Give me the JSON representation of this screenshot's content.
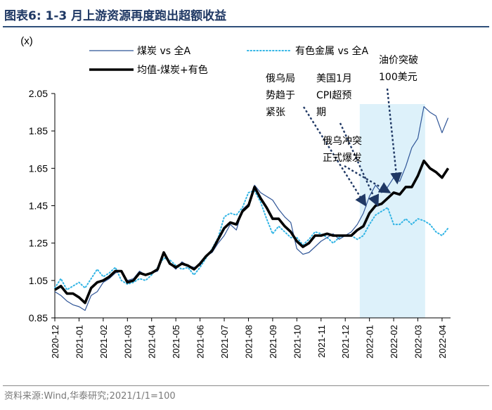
{
  "figure": {
    "title": "图表6:   1-3 月上游资源再度跑出超额收益",
    "source": "资料来源:Wind,华泰研究;2021/1/1=100"
  },
  "chart_data": {
    "type": "line",
    "title": "1-3 月上游资源再度跑出超额收益",
    "ylabel": "(x)",
    "xlabel": "",
    "ylim": [
      0.85,
      2.05
    ],
    "yticks": [
      0.85,
      1.05,
      1.25,
      1.45,
      1.65,
      1.85,
      2.05
    ],
    "ytick_labels": [
      "0.85",
      "1.05",
      "1.25",
      "1.45",
      "1.65",
      "1.85",
      "2.05"
    ],
    "xlim": [
      0,
      16.35
    ],
    "xticks": [
      "2020-12",
      "2021-01",
      "2021-02",
      "2021-03",
      "2021-04",
      "2021-05",
      "2021-06",
      "2021-07",
      "2021-08",
      "2021-09",
      "2021-10",
      "2021-11",
      "2021-12",
      "2022-01",
      "2022-02",
      "2022-03",
      "2022-04"
    ],
    "shaded_region": [
      12.6,
      15.3
    ],
    "series": [
      {
        "name": "煤炭 vs 全A",
        "color": "#2f5597",
        "style": "thin",
        "x": [
          0,
          0.25,
          0.5,
          0.75,
          1,
          1.25,
          1.5,
          1.75,
          2,
          2.25,
          2.5,
          2.75,
          3,
          3.25,
          3.5,
          3.75,
          4,
          4.25,
          4.5,
          4.75,
          5,
          5.25,
          5.5,
          5.75,
          6,
          6.25,
          6.5,
          6.75,
          7,
          7.25,
          7.5,
          7.75,
          8,
          8.25,
          8.5,
          8.75,
          9,
          9.25,
          9.5,
          9.75,
          10,
          10.25,
          10.5,
          10.75,
          11,
          11.25,
          11.5,
          11.75,
          12,
          12.25,
          12.5,
          12.75,
          13,
          13.25,
          13.5,
          13.75,
          14,
          14.25,
          14.5,
          14.75,
          15,
          15.25,
          15.5,
          15.75,
          16,
          16.25
        ],
        "values": [
          0.99,
          0.97,
          0.94,
          0.92,
          0.91,
          0.89,
          0.97,
          0.99,
          1.04,
          1.06,
          1.09,
          1.1,
          1.05,
          1.06,
          1.1,
          1.08,
          1.09,
          1.1,
          1.2,
          1.14,
          1.11,
          1.15,
          1.13,
          1.12,
          1.13,
          1.18,
          1.2,
          1.25,
          1.29,
          1.35,
          1.32,
          1.43,
          1.46,
          1.56,
          1.52,
          1.5,
          1.48,
          1.43,
          1.39,
          1.36,
          1.22,
          1.19,
          1.2,
          1.23,
          1.26,
          1.28,
          1.3,
          1.27,
          1.29,
          1.31,
          1.35,
          1.41,
          1.5,
          1.56,
          1.52,
          1.55,
          1.6,
          1.58,
          1.66,
          1.76,
          1.81,
          1.98,
          1.95,
          1.93,
          1.84,
          1.92
        ]
      },
      {
        "name": "有色金属 vs 全A",
        "color": "#33b5e5",
        "style": "dotted",
        "x": [
          0,
          0.25,
          0.5,
          0.75,
          1,
          1.25,
          1.5,
          1.75,
          2,
          2.25,
          2.5,
          2.75,
          3,
          3.25,
          3.5,
          3.75,
          4,
          4.25,
          4.5,
          4.75,
          5,
          5.25,
          5.5,
          5.75,
          6,
          6.25,
          6.5,
          6.75,
          7,
          7.25,
          7.5,
          7.75,
          8,
          8.25,
          8.5,
          8.75,
          9,
          9.25,
          9.5,
          9.75,
          10,
          10.25,
          10.5,
          10.75,
          11,
          11.25,
          11.5,
          11.75,
          12,
          12.25,
          12.5,
          12.75,
          13,
          13.25,
          13.5,
          13.75,
          14,
          14.25,
          14.5,
          14.75,
          15,
          15.25,
          15.5,
          15.75,
          16,
          16.25
        ],
        "values": [
          1.01,
          1.06,
          1.0,
          1.02,
          1.04,
          1.01,
          1.06,
          1.11,
          1.07,
          1.09,
          1.12,
          1.05,
          1.03,
          1.04,
          1.06,
          1.05,
          1.08,
          1.12,
          1.17,
          1.16,
          1.13,
          1.11,
          1.12,
          1.08,
          1.12,
          1.17,
          1.22,
          1.28,
          1.39,
          1.41,
          1.4,
          1.44,
          1.52,
          1.53,
          1.47,
          1.38,
          1.3,
          1.34,
          1.31,
          1.28,
          1.28,
          1.24,
          1.27,
          1.31,
          1.3,
          1.28,
          1.25,
          1.28,
          1.29,
          1.29,
          1.27,
          1.29,
          1.35,
          1.4,
          1.42,
          1.44,
          1.35,
          1.35,
          1.38,
          1.35,
          1.38,
          1.37,
          1.35,
          1.31,
          1.29,
          1.33
        ]
      },
      {
        "name": "均值-煤炭+有色",
        "color": "#000000",
        "style": "thick",
        "x": [
          0,
          0.25,
          0.5,
          0.75,
          1,
          1.25,
          1.5,
          1.75,
          2,
          2.25,
          2.5,
          2.75,
          3,
          3.25,
          3.5,
          3.75,
          4,
          4.25,
          4.5,
          4.75,
          5,
          5.25,
          5.5,
          5.75,
          6,
          6.25,
          6.5,
          6.75,
          7,
          7.25,
          7.5,
          7.75,
          8,
          8.25,
          8.5,
          8.75,
          9,
          9.25,
          9.5,
          9.75,
          10,
          10.25,
          10.5,
          10.75,
          11,
          11.25,
          11.5,
          11.75,
          12,
          12.25,
          12.5,
          12.75,
          13,
          13.25,
          13.5,
          13.75,
          14,
          14.25,
          14.5,
          14.75,
          15,
          15.25,
          15.5,
          15.75,
          16,
          16.25
        ],
        "values": [
          1.0,
          1.02,
          0.98,
          0.98,
          0.96,
          0.93,
          1.01,
          1.04,
          1.05,
          1.07,
          1.1,
          1.1,
          1.04,
          1.05,
          1.09,
          1.08,
          1.09,
          1.11,
          1.2,
          1.14,
          1.12,
          1.14,
          1.13,
          1.11,
          1.14,
          1.18,
          1.21,
          1.27,
          1.33,
          1.36,
          1.35,
          1.42,
          1.45,
          1.55,
          1.49,
          1.44,
          1.38,
          1.38,
          1.34,
          1.31,
          1.26,
          1.23,
          1.25,
          1.29,
          1.29,
          1.3,
          1.29,
          1.29,
          1.29,
          1.29,
          1.32,
          1.34,
          1.41,
          1.45,
          1.46,
          1.49,
          1.52,
          1.51,
          1.55,
          1.55,
          1.61,
          1.69,
          1.65,
          1.63,
          1.6,
          1.65
        ]
      }
    ],
    "legend": {
      "position": "top",
      "entries": [
        "煤炭 vs 全A",
        "有色金属 vs 全A",
        "均值-煤炭+有色"
      ]
    },
    "annotations": [
      {
        "lines": [
          "俄乌局",
          "势趋于",
          "紧张"
        ],
        "arrow_to_x": 12.85,
        "arrow_to_y": 1.45
      },
      {
        "lines": [
          "美国1月",
          "CPI超预",
          "期"
        ],
        "arrow_to_x": 13.35,
        "arrow_to_y": 1.45
      },
      {
        "lines": [
          "俄乌冲突",
          "正式爆发"
        ],
        "arrow_to_x": 13.85,
        "arrow_to_y": 1.52
      },
      {
        "lines": [
          "油价突破",
          "100美元"
        ],
        "arrow_to_x": 14.15,
        "arrow_to_y": 1.57
      }
    ]
  }
}
